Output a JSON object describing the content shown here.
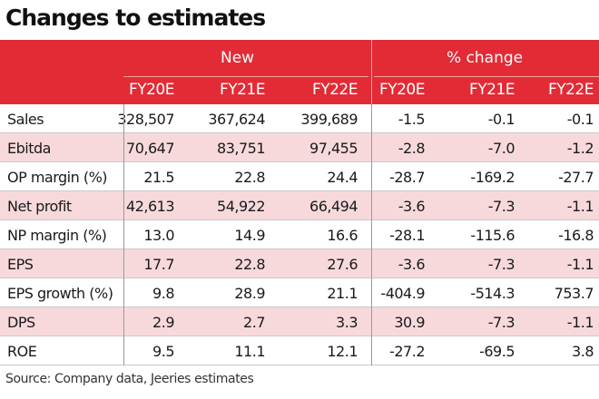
{
  "title": "Changes to estimates",
  "header": {
    "group_new": "New",
    "group_change": "% change",
    "columns": [
      "FY20E",
      "FY21E",
      "FY22E",
      "FY20E",
      "FY21E",
      "FY22E"
    ]
  },
  "rows": [
    {
      "label": "Sales",
      "values": [
        "328,507",
        "367,624",
        "399,689",
        "-1.5",
        "-0.1",
        "-0.1"
      ]
    },
    {
      "label": "Ebitda",
      "values": [
        "70,647",
        "83,751",
        "97,455",
        "-2.8",
        "-7.0",
        "-1.2"
      ]
    },
    {
      "label": "OP margin (%)",
      "values": [
        "21.5",
        "22.8",
        "24.4",
        "-28.7",
        "-169.2",
        "-27.7"
      ]
    },
    {
      "label": "Net profit",
      "values": [
        "42,613",
        "54,922",
        "66,494",
        "-3.6",
        "-7.3",
        "-1.1"
      ]
    },
    {
      "label": "NP margin (%)",
      "values": [
        "13.0",
        "14.9",
        "16.6",
        "-28.1",
        "-115.6",
        "-16.8"
      ]
    },
    {
      "label": "EPS",
      "values": [
        "17.7",
        "22.8",
        "27.6",
        "-3.6",
        "-7.3",
        "-1.1"
      ]
    },
    {
      "label": "EPS growth (%)",
      "values": [
        "9.8",
        "28.9",
        "21.1",
        "-404.9",
        "-514.3",
        "753.7"
      ]
    },
    {
      "label": "DPS",
      "values": [
        "2.9",
        "2.7",
        "3.3",
        "30.9",
        "-7.3",
        "-1.1"
      ]
    },
    {
      "label": "ROE",
      "values": [
        "9.5",
        "11.1",
        "12.1",
        "-27.2",
        "-69.5",
        "3.8"
      ]
    }
  ],
  "source": "Source: Company data, Jeeries estimates",
  "colors": {
    "header_bg": "#e32b36",
    "row_shade": "#f7d9dc",
    "header_text": "#ffffff"
  }
}
